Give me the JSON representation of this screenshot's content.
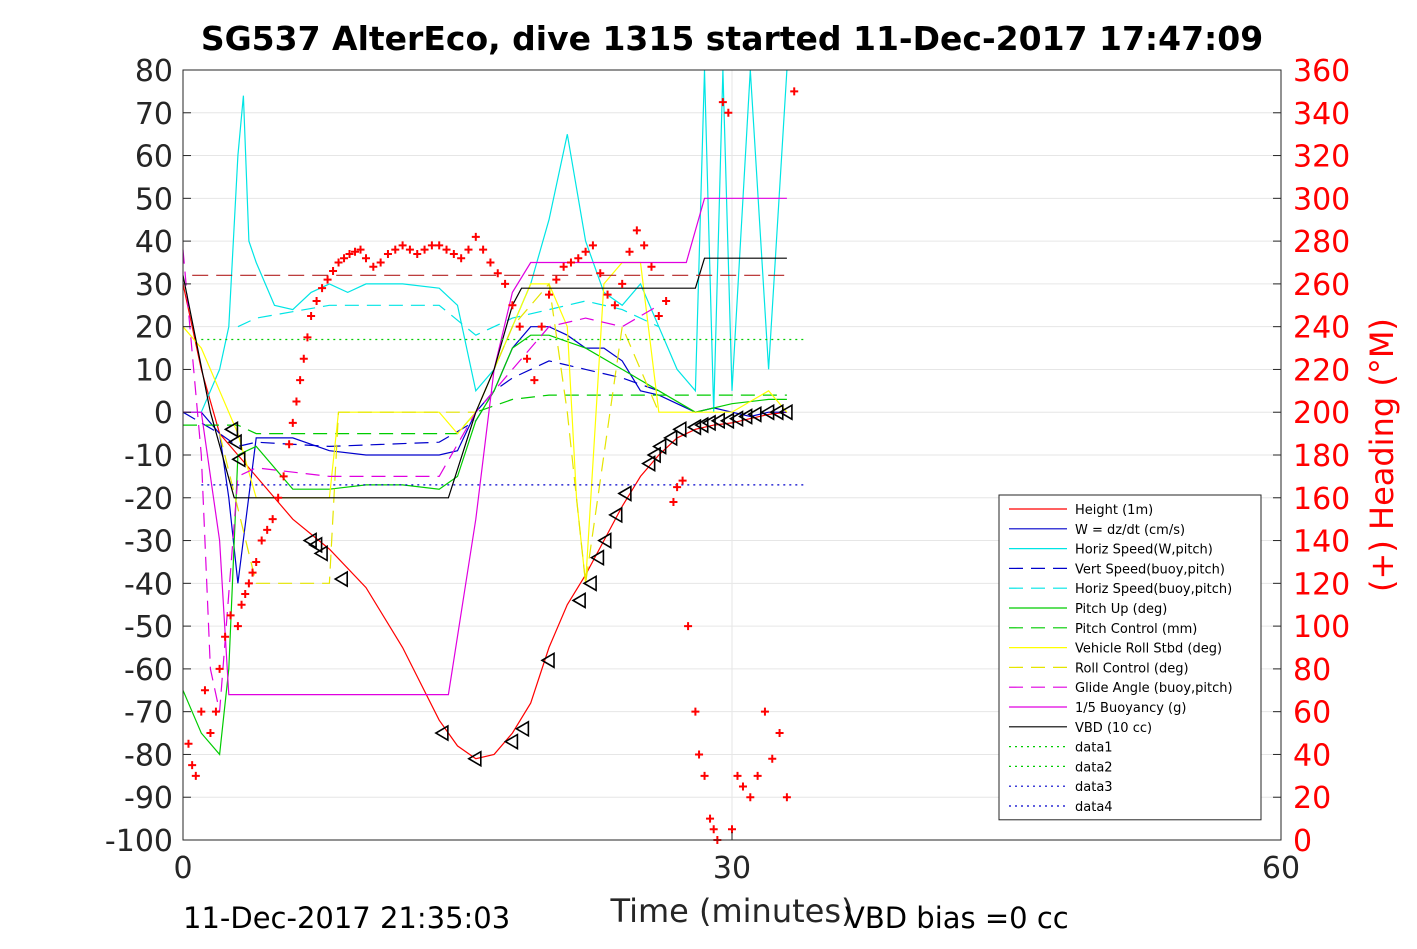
{
  "chart_data": {
    "type": "line",
    "title": "SG537 AlterEco, dive 1315 started 11-Dec-2017 17:47:09",
    "xlabel": "Time (minutes)",
    "ylabel": "",
    "ylabel_right": "(+) Heading (°M)",
    "xlim": [
      0,
      60
    ],
    "ylim": [
      -100,
      80
    ],
    "ylim_right": [
      0,
      360
    ],
    "xticks": [
      0,
      30,
      60
    ],
    "yticks": [
      80,
      70,
      60,
      50,
      40,
      30,
      20,
      10,
      0,
      -10,
      -20,
      -30,
      -40,
      -50,
      -60,
      -70,
      -80,
      -90,
      -100
    ],
    "yticks_right": [
      360,
      340,
      320,
      300,
      280,
      260,
      240,
      220,
      200,
      180,
      160,
      140,
      120,
      100,
      80,
      60,
      40,
      20,
      0
    ],
    "grid": true,
    "legend_position": "bottom-right",
    "footer_left": "11-Dec-2017 21:35:03",
    "footer_right": "VBD bias =0 cc",
    "colors": {
      "height": "#ff0000",
      "w": "#0000cc",
      "horiz_speed": "#00e5e5",
      "vert_speed_buoy": "#0000cc",
      "horiz_speed_buoy": "#00e5e5",
      "pitch_up": "#00cc00",
      "pitch_control": "#00cc00",
      "roll": "#ffff00",
      "roll_control": "#e5e500",
      "glide_angle": "#e000e0",
      "buoyancy": "#e000e0",
      "vbd": "#000000",
      "data1": "#00cc00",
      "data2": "#00cc00",
      "data3": "#0000cc",
      "data4": "#0000cc",
      "heading": "#ff0000"
    },
    "legend": [
      {
        "label": "Height (1m)",
        "color": "#ff0000",
        "dash": "solid"
      },
      {
        "label": "W = dz/dt (cm/s)",
        "color": "#0000cc",
        "dash": "solid"
      },
      {
        "label": "Horiz Speed(W,pitch)",
        "color": "#00e5e5",
        "dash": "solid"
      },
      {
        "label": "Vert Speed(buoy,pitch)",
        "color": "#0000cc",
        "dash": "dashed"
      },
      {
        "label": "Horiz Speed(buoy,pitch)",
        "color": "#00e5e5",
        "dash": "dashed"
      },
      {
        "label": "Pitch Up (deg)",
        "color": "#00cc00",
        "dash": "solid"
      },
      {
        "label": "Pitch Control (mm)",
        "color": "#00cc00",
        "dash": "dashed"
      },
      {
        "label": "Vehicle Roll Stbd (deg)",
        "color": "#ffff00",
        "dash": "solid"
      },
      {
        "label": "Roll Control (deg)",
        "color": "#e5e500",
        "dash": "dashed"
      },
      {
        "label": "Glide Angle (buoy,pitch)",
        "color": "#e000e0",
        "dash": "dashed"
      },
      {
        "label": "1/5 Buoyancy (g)",
        "color": "#e000e0",
        "dash": "solid"
      },
      {
        "label": "VBD (10 cc)",
        "color": "#000000",
        "dash": "solid"
      },
      {
        "label": "data1",
        "color": "#00cc00",
        "dash": "dotted"
      },
      {
        "label": "data2",
        "color": "#00cc00",
        "dash": "dotted"
      },
      {
        "label": "data3",
        "color": "#0000cc",
        "dash": "dotted"
      },
      {
        "label": "data4",
        "color": "#0000cc",
        "dash": "dotted"
      }
    ],
    "series": [
      {
        "key": "height",
        "name": "Height (1m)",
        "axis": "left",
        "x": [
          0,
          1,
          2,
          3,
          4,
          6,
          8,
          10,
          12,
          14,
          15,
          16,
          17,
          18,
          19,
          20,
          21,
          22,
          23,
          24,
          25,
          26,
          27,
          28,
          29,
          30,
          31,
          32,
          33
        ],
        "y": [
          30,
          10,
          -5,
          -10,
          -15,
          -25,
          -32,
          -41,
          -55,
          -72,
          -78,
          -81,
          -80,
          -75,
          -68,
          -55,
          -45,
          -38,
          -30,
          -22,
          -15,
          -10,
          -6,
          -4,
          -3,
          -2.5,
          -1.5,
          -0.5,
          0
        ]
      },
      {
        "key": "w",
        "name": "W = dz/dt (cm/s)",
        "axis": "left",
        "x": [
          0,
          1,
          2,
          2.5,
          3,
          4,
          6,
          8,
          10,
          12,
          14,
          15,
          16,
          17,
          18,
          19,
          20,
          21,
          22,
          23,
          24,
          25,
          26,
          27,
          28,
          29,
          30,
          31,
          32,
          33
        ],
        "y": [
          0,
          0,
          -5,
          -20,
          -40,
          -6,
          -6,
          -9,
          -10,
          -10,
          -10,
          -9,
          0,
          5,
          15,
          20,
          20,
          18,
          15,
          15,
          12,
          5,
          4,
          2,
          0,
          1,
          0,
          -1,
          0,
          0
        ]
      },
      {
        "key": "horiz_speed",
        "name": "Horiz Speed(W,pitch)",
        "axis": "left",
        "x": [
          0,
          1,
          2,
          2.5,
          3,
          3.3,
          3.6,
          4,
          5,
          6,
          7,
          8,
          9,
          10,
          12,
          14,
          15,
          16,
          17,
          18,
          19,
          20,
          21,
          22,
          23,
          24,
          25,
          26,
          27,
          28,
          28.5,
          29,
          29.5,
          30,
          31,
          32,
          33
        ],
        "y": [
          0,
          0,
          10,
          20,
          60,
          74,
          40,
          35,
          25,
          24,
          28,
          30,
          28,
          30,
          30,
          29,
          25,
          5,
          10,
          20,
          30,
          45,
          65,
          40,
          28,
          25,
          30,
          20,
          10,
          5,
          80,
          0,
          80,
          5,
          80,
          10,
          80
        ]
      },
      {
        "key": "vert_speed_buoy",
        "name": "Vert Speed(buoy,pitch)",
        "axis": "left",
        "dash": "dashed",
        "x": [
          0,
          2,
          3,
          4,
          8,
          14,
          16,
          17,
          18,
          20,
          22,
          24,
          26
        ],
        "y": [
          0,
          -5,
          -8,
          -7,
          -8,
          -7,
          -2,
          5,
          8,
          12,
          10,
          8,
          5
        ]
      },
      {
        "key": "horiz_speed_buoy",
        "name": "Horiz Speed(buoy,pitch)",
        "axis": "left",
        "dash": "dashed",
        "x": [
          3,
          4,
          8,
          14,
          16,
          18,
          20,
          22,
          24,
          26
        ],
        "y": [
          20,
          22,
          25,
          25,
          18,
          22,
          24,
          26,
          24,
          20
        ]
      },
      {
        "key": "pitch_up",
        "name": "Pitch Up (deg)",
        "axis": "left",
        "x": [
          0,
          1,
          2,
          2.5,
          3,
          4,
          6,
          8,
          10,
          12,
          14,
          15,
          16,
          17,
          18,
          19,
          20,
          22,
          24,
          26,
          28,
          30,
          32,
          33
        ],
        "y": [
          -65,
          -75,
          -80,
          -60,
          -10,
          -8,
          -18,
          -18,
          -17,
          -17,
          -18,
          -15,
          -2,
          5,
          15,
          18,
          18,
          15,
          10,
          5,
          0,
          2,
          3,
          3
        ]
      },
      {
        "key": "pitch_control",
        "name": "Pitch Control (mm)",
        "axis": "left",
        "dash": "dashed",
        "x": [
          0,
          2,
          3,
          4,
          14,
          15,
          16,
          18,
          20,
          26,
          33
        ],
        "y": [
          -3,
          -3,
          -3,
          -5,
          -5,
          -5,
          0,
          3,
          4,
          4,
          4
        ]
      },
      {
        "key": "roll",
        "name": "Vehicle Roll Stbd (deg)",
        "axis": "left",
        "x": [
          0,
          1,
          2,
          3,
          4,
          6,
          8,
          8.5,
          9,
          12,
          14,
          15,
          16,
          17,
          18,
          19,
          20,
          21,
          21.5,
          22,
          23,
          24,
          25,
          26,
          28,
          30,
          32,
          33
        ],
        "y": [
          20,
          15,
          5,
          -5,
          -20,
          -20,
          -20,
          0,
          0,
          0,
          0,
          -5,
          0,
          10,
          20,
          30,
          30,
          20,
          -20,
          -40,
          30,
          35,
          35,
          0,
          0,
          0,
          5,
          0
        ]
      },
      {
        "key": "roll_control",
        "name": "Roll Control (deg)",
        "axis": "left",
        "dash": "dashed",
        "x": [
          2,
          4,
          8,
          8.5,
          14,
          16,
          18,
          20,
          21,
          22,
          24,
          26
        ],
        "y": [
          -5,
          -40,
          -40,
          0,
          0,
          0,
          20,
          30,
          0,
          -40,
          20,
          0
        ]
      },
      {
        "key": "glide_angle",
        "name": "Glide Angle (buoy,pitch)",
        "axis": "left",
        "dash": "dashed",
        "x": [
          0,
          1,
          1.5,
          2,
          3,
          4,
          8,
          14,
          16,
          18,
          20,
          22,
          24,
          26
        ],
        "y": [
          38,
          -10,
          -60,
          -70,
          -15,
          -13,
          -15,
          -15,
          0,
          10,
          20,
          22,
          20,
          25
        ]
      },
      {
        "key": "buoyancy",
        "name": "1/5 Buoyancy (g)",
        "axis": "left",
        "x": [
          0,
          1,
          2,
          2.5,
          14.5,
          16,
          17,
          18,
          19,
          21,
          27.5,
          28.5,
          33
        ],
        "y": [
          0,
          0,
          -30,
          -66,
          -66,
          -25,
          10,
          28,
          35,
          35,
          35,
          50,
          50
        ]
      },
      {
        "key": "vbd",
        "name": "VBD (10 cc)",
        "axis": "left",
        "x": [
          0,
          1.5,
          2.8,
          14.5,
          16,
          17,
          18,
          18.5,
          20,
          28,
          28.5,
          33
        ],
        "y": [
          32,
          0,
          -20,
          -20,
          0,
          10,
          25,
          29,
          29,
          29,
          36,
          36
        ]
      },
      {
        "key": "data1",
        "name": "data1",
        "axis": "left",
        "dash": "dotted",
        "x": [
          1,
          34
        ],
        "y": [
          17,
          17
        ]
      },
      {
        "key": "data3",
        "name": "data3",
        "axis": "left",
        "dash": "dotted",
        "x": [
          1,
          34
        ],
        "y": [
          -17,
          -17
        ]
      },
      {
        "key": "ref",
        "name": "",
        "axis": "left",
        "dash": "longdash",
        "x": [
          0.5,
          33
        ],
        "y": [
          32,
          32
        ]
      }
    ],
    "markers": {
      "key": "triangles",
      "axis": "left",
      "x": [
        2.7,
        2.9,
        3.1,
        7,
        7.3,
        7.6,
        8.7,
        14.2,
        16,
        18,
        18.6,
        20,
        21.7,
        22.3,
        22.7,
        23.1,
        23.7,
        24.2,
        25.5,
        25.8,
        26.1,
        26.7,
        27.2,
        28,
        28.4,
        28.8,
        29.3,
        29.8,
        30.3,
        30.8,
        31.3,
        32,
        32.5,
        33
      ],
      "y": [
        -4,
        -7,
        -11,
        -30,
        -31,
        -33,
        -39,
        -75,
        -81,
        -77,
        -74,
        -58,
        -44,
        -40,
        -34,
        -30,
        -24,
        -19,
        -12,
        -10,
        -8,
        -6,
        -4,
        -3.5,
        -3,
        -2.5,
        -2,
        -2,
        -1.5,
        -1,
        -0.5,
        0,
        0,
        0
      ]
    },
    "heading": {
      "key": "heading",
      "name": "(+) Heading (°M)",
      "axis": "right",
      "x": [
        0.3,
        0.5,
        0.7,
        1.0,
        1.2,
        1.5,
        1.8,
        2.0,
        2.3,
        2.6,
        3.0,
        3.2,
        3.4,
        3.6,
        3.8,
        4.0,
        4.3,
        4.6,
        4.9,
        5.2,
        5.5,
        5.8,
        6.0,
        6.2,
        6.4,
        6.6,
        6.8,
        7.0,
        7.3,
        7.6,
        7.9,
        8.2,
        8.5,
        8.8,
        9.1,
        9.4,
        9.7,
        10.0,
        10.4,
        10.8,
        11.2,
        11.6,
        12.0,
        12.4,
        12.8,
        13.2,
        13.6,
        14.0,
        14.4,
        14.8,
        15.2,
        15.6,
        16.0,
        16.4,
        16.8,
        17.2,
        17.6,
        18.0,
        18.4,
        18.8,
        19.2,
        19.6,
        20.0,
        20.4,
        20.8,
        21.2,
        21.6,
        22.0,
        22.4,
        22.8,
        23.2,
        23.6,
        24.0,
        24.4,
        24.8,
        25.2,
        25.6,
        26.0,
        26.4,
        26.8,
        27.0,
        27.3,
        27.6,
        28.0,
        28.2,
        28.5,
        28.8,
        29.0,
        29.2,
        29.5,
        29.8,
        30.0,
        30.3,
        30.6,
        31.0,
        31.4,
        31.8,
        32.2,
        32.6,
        33.0,
        33.4
      ],
      "y": [
        45,
        35,
        30,
        60,
        70,
        50,
        60,
        80,
        95,
        105,
        100,
        110,
        115,
        120,
        125,
        130,
        140,
        145,
        150,
        160,
        170,
        185,
        195,
        205,
        215,
        225,
        235,
        245,
        252,
        258,
        262,
        266,
        270,
        272,
        274,
        275,
        276,
        272,
        268,
        270,
        274,
        276,
        278,
        276,
        274,
        276,
        278,
        278,
        276,
        274,
        272,
        276,
        282,
        276,
        270,
        265,
        260,
        250,
        240,
        225,
        215,
        240,
        255,
        262,
        268,
        270,
        272,
        275,
        278,
        265,
        255,
        250,
        260,
        275,
        285,
        278,
        268,
        245,
        252,
        158,
        165,
        168,
        100,
        60,
        40,
        30,
        10,
        5,
        0,
        345,
        340,
        5,
        30,
        25,
        20,
        30,
        60,
        38,
        50,
        20,
        350
      ]
    }
  }
}
